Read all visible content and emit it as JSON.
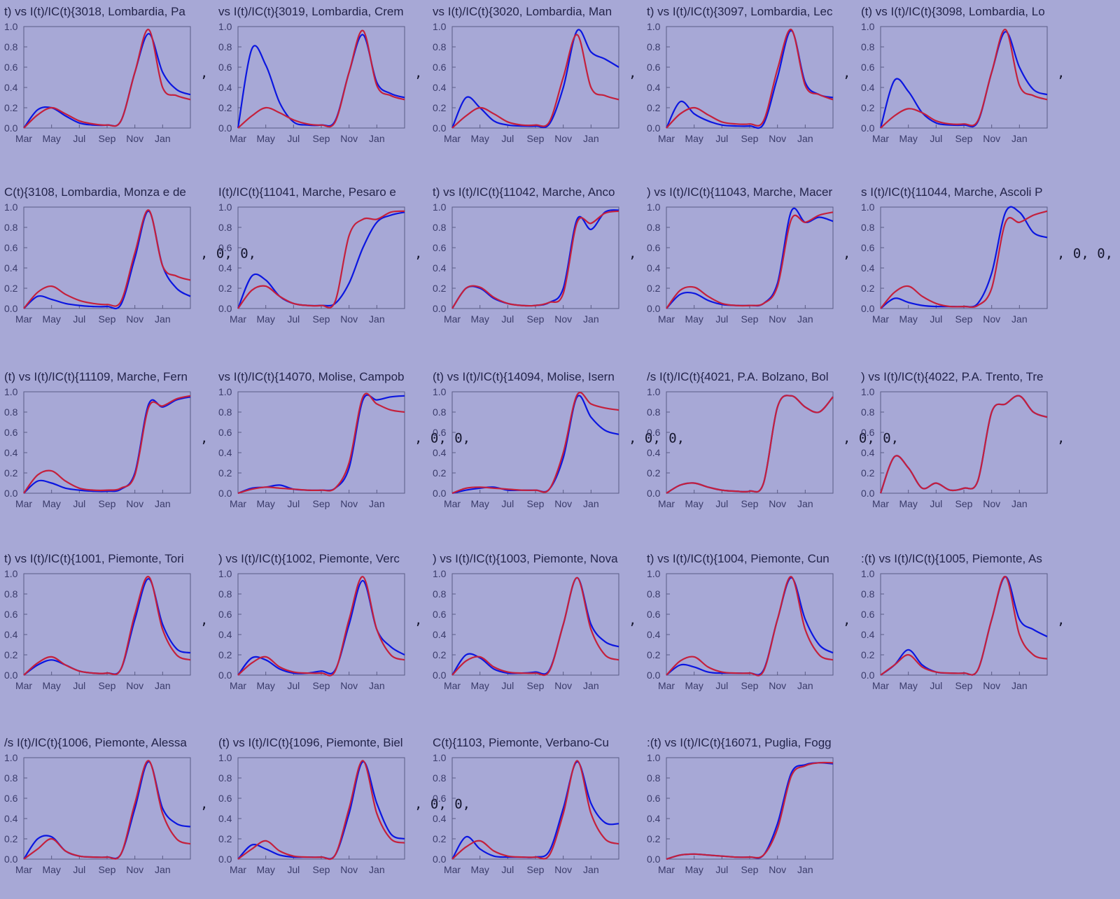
{
  "style": {
    "background": "#a7a8d6",
    "series_colors": {
      "series_a": "#0b16e0",
      "series_b": "#c4203c"
    }
  },
  "chart_data": {
    "type": "line",
    "x_tick_labels": [
      "Mar",
      "May",
      "Jul",
      "Sep",
      "Nov",
      "Jan"
    ],
    "y_tick_labels": [
      "0.0",
      "0.2",
      "0.4",
      "0.6",
      "0.8",
      "1.0"
    ],
    "ylim": [
      0,
      1
    ],
    "x_months": [
      0,
      1,
      2,
      3,
      4,
      5,
      6,
      7,
      8,
      9,
      10,
      11,
      12
    ],
    "x_month_names": [
      "Mar",
      "Apr",
      "May",
      "Jun",
      "Jul",
      "Aug",
      "Sep",
      "Oct",
      "Nov",
      "Dec",
      "Jan",
      "Feb",
      "Mar"
    ],
    "grid": false,
    "separators": [
      ",",
      ",",
      ",",
      ",",
      ",",
      ", 0, 0,",
      ",",
      ",",
      ",",
      ", 0, 0,",
      ",",
      ", 0, 0,",
      ", 0, 0,",
      ", 0, 0,",
      ",",
      ",",
      ",",
      ",",
      ",",
      ",",
      ",",
      ", 0, 0,"
    ],
    "panels": [
      {
        "title": "t) vs I(t)/IC(t){3018, Lombardia, Pa",
        "series_a": [
          0.0,
          0.18,
          0.2,
          0.12,
          0.05,
          0.03,
          0.03,
          0.07,
          0.55,
          0.93,
          0.55,
          0.38,
          0.33
        ],
        "series_b": [
          0.0,
          0.13,
          0.2,
          0.14,
          0.07,
          0.04,
          0.03,
          0.07,
          0.55,
          0.97,
          0.4,
          0.32,
          0.28
        ]
      },
      {
        "title": "vs I(t)/IC(t){3019, Lombardia, Crem",
        "series_a": [
          0.0,
          0.78,
          0.62,
          0.25,
          0.06,
          0.03,
          0.03,
          0.07,
          0.55,
          0.92,
          0.45,
          0.34,
          0.3
        ],
        "series_b": [
          0.0,
          0.12,
          0.2,
          0.15,
          0.08,
          0.04,
          0.03,
          0.06,
          0.55,
          0.96,
          0.42,
          0.32,
          0.28
        ]
      },
      {
        "title": "vs I(t)/IC(t){3020, Lombardia, Man",
        "series_a": [
          0.0,
          0.3,
          0.2,
          0.07,
          0.03,
          0.02,
          0.02,
          0.04,
          0.4,
          0.96,
          0.75,
          0.68,
          0.6
        ],
        "series_b": [
          0.0,
          0.12,
          0.2,
          0.14,
          0.06,
          0.03,
          0.03,
          0.06,
          0.5,
          0.92,
          0.4,
          0.32,
          0.28
        ]
      },
      {
        "title": "t) vs I(t)/IC(t){3097, Lombardia, Lec",
        "series_a": [
          0.0,
          0.26,
          0.14,
          0.07,
          0.03,
          0.02,
          0.02,
          0.04,
          0.5,
          0.96,
          0.45,
          0.33,
          0.3
        ],
        "series_b": [
          0.0,
          0.14,
          0.2,
          0.13,
          0.06,
          0.04,
          0.04,
          0.07,
          0.58,
          0.97,
          0.42,
          0.33,
          0.28
        ]
      },
      {
        "title": "(t) vs I(t)/IC(t){3098, Lombardia, Lo",
        "series_a": [
          0.0,
          0.47,
          0.36,
          0.15,
          0.05,
          0.03,
          0.03,
          0.06,
          0.55,
          0.95,
          0.6,
          0.38,
          0.33
        ],
        "series_b": [
          0.0,
          0.12,
          0.19,
          0.15,
          0.07,
          0.04,
          0.04,
          0.07,
          0.55,
          0.97,
          0.42,
          0.32,
          0.28
        ]
      },
      {
        "title": "C(t){3108, Lombardia, Monza e de",
        "series_a": [
          0.0,
          0.12,
          0.09,
          0.05,
          0.03,
          0.02,
          0.02,
          0.04,
          0.5,
          0.96,
          0.42,
          0.2,
          0.12
        ],
        "series_b": [
          0.0,
          0.16,
          0.22,
          0.14,
          0.08,
          0.05,
          0.04,
          0.07,
          0.55,
          0.97,
          0.42,
          0.32,
          0.28
        ]
      },
      {
        "title": "I(t)/IC(t){11041, Marche, Pesaro e",
        "series_a": [
          0.0,
          0.32,
          0.28,
          0.12,
          0.05,
          0.03,
          0.03,
          0.05,
          0.25,
          0.6,
          0.85,
          0.92,
          0.95
        ],
        "series_b": [
          0.0,
          0.18,
          0.22,
          0.12,
          0.05,
          0.03,
          0.03,
          0.07,
          0.72,
          0.88,
          0.88,
          0.95,
          0.96
        ]
      },
      {
        "title": "t) vs I(t)/IC(t){11042, Marche, Anco",
        "series_a": [
          0.0,
          0.2,
          0.2,
          0.1,
          0.05,
          0.03,
          0.03,
          0.06,
          0.2,
          0.88,
          0.78,
          0.95,
          0.97
        ],
        "series_b": [
          0.0,
          0.2,
          0.21,
          0.11,
          0.05,
          0.03,
          0.03,
          0.06,
          0.15,
          0.85,
          0.84,
          0.94,
          0.96
        ]
      },
      {
        "title": ") vs I(t)/IC(t){11043, Marche, Macer",
        "series_a": [
          0.0,
          0.14,
          0.15,
          0.08,
          0.04,
          0.03,
          0.03,
          0.05,
          0.25,
          0.96,
          0.85,
          0.9,
          0.86
        ],
        "series_b": [
          0.0,
          0.18,
          0.21,
          0.12,
          0.05,
          0.03,
          0.03,
          0.05,
          0.22,
          0.88,
          0.85,
          0.92,
          0.95
        ]
      },
      {
        "title": "s I(t)/IC(t){11044, Marche, Ascoli P",
        "series_a": [
          0.0,
          0.1,
          0.06,
          0.03,
          0.02,
          0.02,
          0.02,
          0.05,
          0.35,
          0.95,
          0.95,
          0.75,
          0.7
        ],
        "series_b": [
          0.0,
          0.16,
          0.22,
          0.12,
          0.05,
          0.02,
          0.02,
          0.03,
          0.2,
          0.85,
          0.85,
          0.92,
          0.96
        ]
      },
      {
        "title": "(t) vs I(t)/IC(t){11109, Marche, Fern",
        "series_a": [
          0.0,
          0.12,
          0.1,
          0.05,
          0.03,
          0.02,
          0.02,
          0.04,
          0.2,
          0.88,
          0.85,
          0.92,
          0.95
        ],
        "series_b": [
          0.0,
          0.18,
          0.22,
          0.12,
          0.05,
          0.03,
          0.03,
          0.05,
          0.18,
          0.85,
          0.86,
          0.93,
          0.96
        ]
      },
      {
        "title": "vs I(t)/IC(t){14070, Molise, Campob",
        "series_a": [
          0.0,
          0.05,
          0.06,
          0.08,
          0.04,
          0.03,
          0.03,
          0.05,
          0.25,
          0.92,
          0.92,
          0.95,
          0.96
        ],
        "series_b": [
          0.0,
          0.04,
          0.06,
          0.05,
          0.04,
          0.03,
          0.03,
          0.05,
          0.3,
          0.95,
          0.88,
          0.82,
          0.8
        ]
      },
      {
        "title": "(t) vs I(t)/IC(t){14094, Molise, Isern",
        "series_a": [
          0.0,
          0.03,
          0.05,
          0.06,
          0.03,
          0.03,
          0.03,
          0.04,
          0.35,
          0.95,
          0.75,
          0.62,
          0.58
        ],
        "series_b": [
          0.0,
          0.05,
          0.06,
          0.05,
          0.04,
          0.03,
          0.03,
          0.04,
          0.4,
          0.97,
          0.88,
          0.84,
          0.82
        ]
      },
      {
        "title": "/s I(t)/IC(t){4021, P.A. Bolzano, Bol",
        "series_a": [
          0.0,
          0.08,
          0.1,
          0.06,
          0.03,
          0.02,
          0.02,
          0.1,
          0.85,
          0.96,
          0.85,
          0.8,
          0.95
        ],
        "series_b": [
          0.0,
          0.08,
          0.1,
          0.06,
          0.03,
          0.02,
          0.02,
          0.1,
          0.85,
          0.96,
          0.85,
          0.8,
          0.95
        ]
      },
      {
        "title": ") vs I(t)/IC(t){4022, P.A. Trento, Tre",
        "series_a": [
          0.0,
          0.36,
          0.25,
          0.05,
          0.1,
          0.03,
          0.05,
          0.12,
          0.8,
          0.88,
          0.96,
          0.8,
          0.75
        ],
        "series_b": [
          0.0,
          0.36,
          0.25,
          0.05,
          0.1,
          0.03,
          0.05,
          0.12,
          0.8,
          0.88,
          0.96,
          0.8,
          0.75
        ]
      },
      {
        "title": "t) vs I(t)/IC(t){1001, Piemonte, Tori",
        "series_a": [
          0.0,
          0.1,
          0.15,
          0.1,
          0.04,
          0.02,
          0.02,
          0.06,
          0.55,
          0.95,
          0.5,
          0.26,
          0.22
        ],
        "series_b": [
          0.0,
          0.12,
          0.18,
          0.1,
          0.04,
          0.02,
          0.02,
          0.06,
          0.6,
          0.97,
          0.45,
          0.2,
          0.15
        ]
      },
      {
        "title": ") vs I(t)/IC(t){1002, Piemonte, Verc",
        "series_a": [
          0.0,
          0.17,
          0.15,
          0.06,
          0.02,
          0.02,
          0.04,
          0.05,
          0.5,
          0.93,
          0.45,
          0.28,
          0.2
        ],
        "series_b": [
          0.0,
          0.12,
          0.18,
          0.08,
          0.03,
          0.02,
          0.02,
          0.04,
          0.55,
          0.97,
          0.45,
          0.2,
          0.15
        ]
      },
      {
        "title": ") vs I(t)/IC(t){1003, Piemonte, Nova",
        "series_a": [
          0.0,
          0.2,
          0.17,
          0.06,
          0.02,
          0.02,
          0.03,
          0.05,
          0.5,
          0.96,
          0.5,
          0.33,
          0.28
        ],
        "series_b": [
          0.0,
          0.14,
          0.18,
          0.08,
          0.03,
          0.02,
          0.02,
          0.04,
          0.5,
          0.96,
          0.45,
          0.2,
          0.15
        ]
      },
      {
        "title": "t) vs I(t)/IC(t){1004, Piemonte, Cun",
        "series_a": [
          0.0,
          0.1,
          0.08,
          0.03,
          0.02,
          0.02,
          0.02,
          0.05,
          0.55,
          0.96,
          0.55,
          0.3,
          0.22
        ],
        "series_b": [
          0.0,
          0.14,
          0.18,
          0.08,
          0.03,
          0.02,
          0.02,
          0.04,
          0.55,
          0.97,
          0.45,
          0.2,
          0.15
        ]
      },
      {
        "title": ":(t) vs I(t)/IC(t){1005, Piemonte, As",
        "series_a": [
          0.0,
          0.1,
          0.25,
          0.1,
          0.03,
          0.02,
          0.02,
          0.05,
          0.55,
          0.97,
          0.55,
          0.45,
          0.38
        ],
        "series_b": [
          0.0,
          0.1,
          0.2,
          0.08,
          0.03,
          0.02,
          0.02,
          0.05,
          0.55,
          0.97,
          0.4,
          0.2,
          0.16
        ]
      },
      {
        "title": "/s I(t)/IC(t){1006, Piemonte, Alessa",
        "series_a": [
          0.0,
          0.2,
          0.22,
          0.08,
          0.03,
          0.02,
          0.02,
          0.05,
          0.5,
          0.96,
          0.5,
          0.35,
          0.32
        ],
        "series_b": [
          0.0,
          0.1,
          0.2,
          0.08,
          0.03,
          0.02,
          0.02,
          0.05,
          0.55,
          0.97,
          0.45,
          0.2,
          0.15
        ]
      },
      {
        "title": "(t) vs I(t)/IC(t){1096, Piemonte, Biel",
        "series_a": [
          0.0,
          0.14,
          0.1,
          0.04,
          0.02,
          0.02,
          0.02,
          0.04,
          0.45,
          0.96,
          0.55,
          0.25,
          0.2
        ],
        "series_b": [
          0.0,
          0.1,
          0.18,
          0.08,
          0.03,
          0.02,
          0.02,
          0.04,
          0.5,
          0.97,
          0.45,
          0.2,
          0.16
        ]
      },
      {
        "title": "C(t){1103, Piemonte, Verbano-Cu",
        "series_a": [
          0.0,
          0.22,
          0.1,
          0.03,
          0.02,
          0.02,
          0.02,
          0.08,
          0.5,
          0.96,
          0.55,
          0.36,
          0.35
        ],
        "series_b": [
          0.0,
          0.12,
          0.18,
          0.08,
          0.03,
          0.02,
          0.02,
          0.04,
          0.45,
          0.97,
          0.45,
          0.2,
          0.15
        ]
      },
      {
        "title": ":(t) vs I(t)/IC(t){16071, Puglia, Fogg",
        "series_a": [
          0.0,
          0.04,
          0.05,
          0.04,
          0.03,
          0.02,
          0.02,
          0.04,
          0.35,
          0.85,
          0.93,
          0.95,
          0.94
        ],
        "series_b": [
          0.0,
          0.04,
          0.05,
          0.04,
          0.03,
          0.02,
          0.02,
          0.04,
          0.3,
          0.82,
          0.92,
          0.95,
          0.95
        ]
      }
    ]
  }
}
